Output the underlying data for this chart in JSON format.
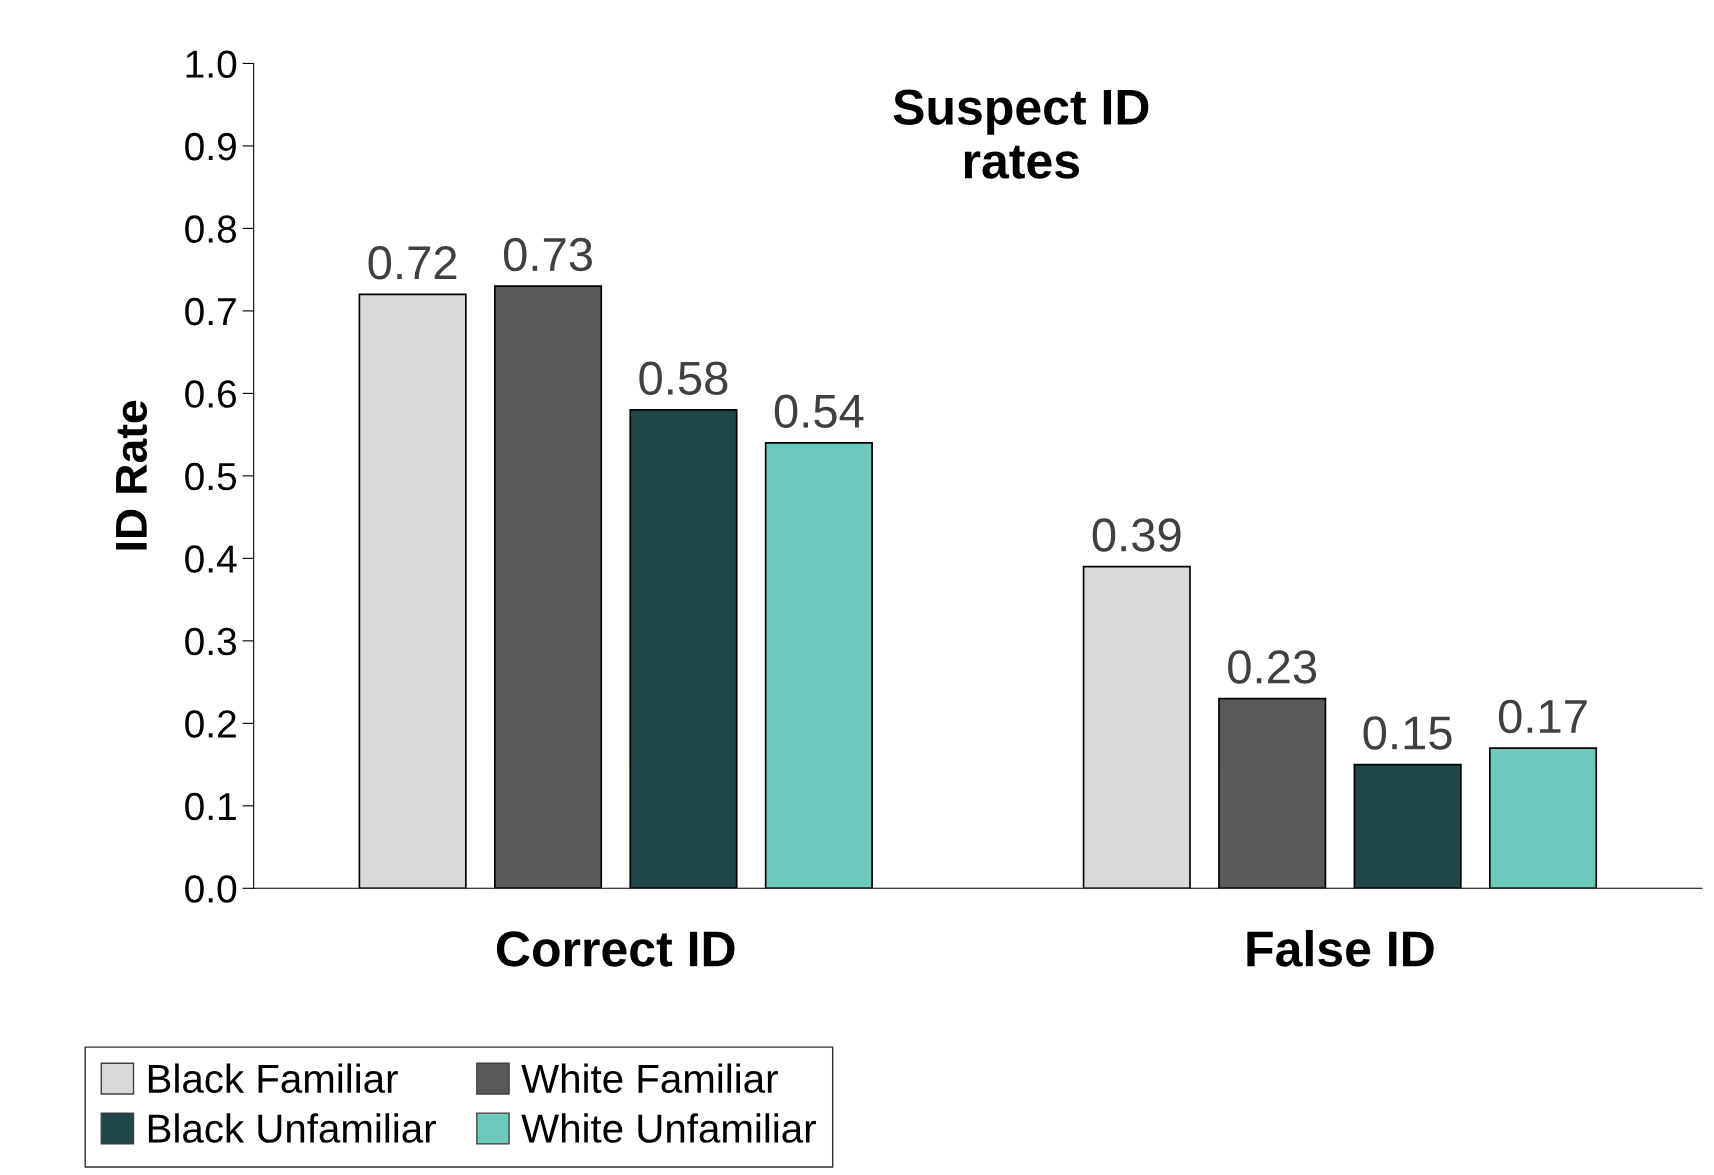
{
  "chart_data": {
    "type": "bar",
    "title": "Suspect ID\nrates",
    "ylabel": "ID Rate",
    "categories": [
      "Correct ID",
      "False ID"
    ],
    "series": [
      {
        "name": "Black Familiar",
        "color": "#d9d9d9",
        "values": [
          0.72,
          0.39
        ]
      },
      {
        "name": "White Familiar",
        "color": "#595959",
        "values": [
          0.73,
          0.23
        ]
      },
      {
        "name": "Black Unfamiliar",
        "color": "#1f4649",
        "values": [
          0.58,
          0.15
        ]
      },
      {
        "name": "White Unfamiliar",
        "color": "#6dc9bc",
        "values": [
          0.54,
          0.17
        ]
      }
    ],
    "ylim": [
      0.0,
      1.0
    ],
    "yticks": [
      {
        "value": 0,
        "label": "0.0"
      },
      0.1,
      0.2,
      0.3,
      0.4,
      0.5,
      0.6,
      0.7,
      0.8,
      0.9,
      {
        "value": 1,
        "label": "1.0"
      }
    ],
    "data_labels": true,
    "grid": false,
    "legend": "bottom left"
  }
}
